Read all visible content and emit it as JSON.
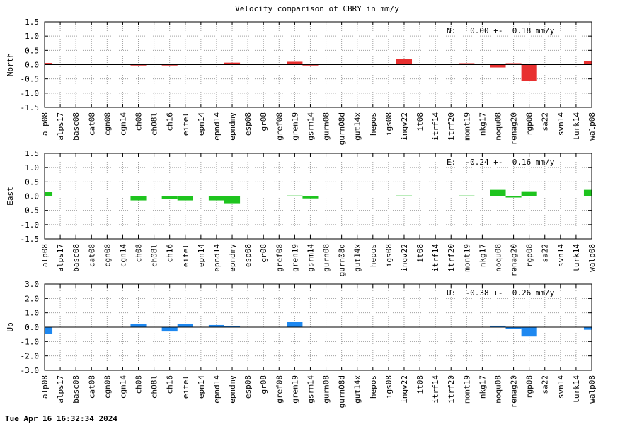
{
  "title": "Velocity comparison of CBRY in mm/y",
  "footer_timestamp": "Tue Apr 16 16:32:34 2024",
  "chart_data": [
    {
      "type": "bar",
      "ylabel": "North",
      "ylim": [
        -1.5,
        1.5
      ],
      "yticks": [
        1.5,
        1.0,
        0.5,
        0.0,
        -0.5,
        -1.0,
        -1.5
      ],
      "ytick_labels": [
        "1.5",
        "1.0",
        "0.5",
        "0.0",
        "-0.5",
        "-1.0",
        "-1.5"
      ],
      "annotation": "N:   0.00 +-  0.18 mm/y",
      "color": "#e83030",
      "grid": true,
      "categories": [
        "alp08",
        "alps17",
        "basc08",
        "cat08",
        "cgn08",
        "cgn14",
        "ch08",
        "ch08l",
        "ch16",
        "eifel",
        "epn14",
        "epnd14",
        "epndmy",
        "esp08",
        "gr08",
        "gref08",
        "gren19",
        "gsrm14",
        "gurn08",
        "gurn08d",
        "gut14x",
        "hepos",
        "igs08",
        "ingv22",
        "it08",
        "itrf14",
        "itrf20",
        "mont19",
        "nkg17",
        "noqu08",
        "renag20",
        "rgp08",
        "sa22",
        "svn14",
        "turk14",
        "walp08"
      ],
      "values": [
        0.06,
        0,
        0,
        0,
        0,
        0,
        -0.03,
        0,
        -0.03,
        0.02,
        0,
        0.03,
        0.07,
        0,
        0,
        0,
        0.1,
        -0.03,
        0,
        0,
        0,
        0,
        0,
        0.2,
        0,
        0,
        0,
        0.05,
        0,
        -0.1,
        0.05,
        -0.57,
        0,
        0,
        0,
        0.13
      ]
    },
    {
      "type": "bar",
      "ylabel": "East",
      "ylim": [
        -1.5,
        1.5
      ],
      "yticks": [
        1.5,
        1.0,
        0.5,
        0.0,
        -0.5,
        -1.0,
        -1.5
      ],
      "ytick_labels": [
        "1.5",
        "1.0",
        "0.5",
        "0.0",
        "-0.5",
        "-1.0",
        "-1.5"
      ],
      "annotation": "E:  -0.24 +-  0.16 mm/y",
      "color": "#1ec41e",
      "grid": true,
      "categories": [
        "alp08",
        "alps17",
        "basc08",
        "cat08",
        "cgn08",
        "cgn14",
        "ch08",
        "ch08l",
        "ch16",
        "eifel",
        "epn14",
        "epnd14",
        "epndmy",
        "esp08",
        "gr08",
        "gref08",
        "gren19",
        "gsrm14",
        "gurn08",
        "gurn08d",
        "gut14x",
        "hepos",
        "igs08",
        "ingv22",
        "it08",
        "itrf14",
        "itrf20",
        "mont19",
        "nkg17",
        "noqu08",
        "renag20",
        "rgp08",
        "sa22",
        "svn14",
        "turk14",
        "walp08"
      ],
      "values": [
        0.15,
        0,
        0,
        0,
        0,
        0,
        -0.15,
        0,
        -0.1,
        -0.15,
        0,
        -0.15,
        -0.25,
        0,
        0,
        0,
        0.02,
        -0.08,
        0,
        0,
        0,
        0,
        0,
        0.02,
        0,
        0,
        0,
        0.02,
        0,
        0.22,
        -0.05,
        0.17,
        0,
        0,
        0,
        0.22
      ]
    },
    {
      "type": "bar",
      "ylabel": "Up",
      "ylim": [
        -3.0,
        3.0
      ],
      "yticks": [
        3.0,
        2.0,
        1.0,
        0.0,
        -1.0,
        -2.0,
        -3.0
      ],
      "ytick_labels": [
        "3.0",
        "2.0",
        "1.0",
        "0.0",
        "-1.0",
        "-2.0",
        "-3.0"
      ],
      "annotation": "U:  -0.38 +-  0.26 mm/y",
      "color": "#1e88f0",
      "grid": true,
      "categories": [
        "alp08",
        "alps17",
        "basc08",
        "cat08",
        "cgn08",
        "cgn14",
        "ch08",
        "ch08l",
        "ch16",
        "eifel",
        "epn14",
        "epnd14",
        "epndmy",
        "esp08",
        "gr08",
        "gref08",
        "gren19",
        "gsrm14",
        "gurn08",
        "gurn08d",
        "gut14x",
        "hepos",
        "igs08",
        "ingv22",
        "it08",
        "itrf14",
        "itrf20",
        "mont19",
        "nkg17",
        "noqu08",
        "renag20",
        "rgp08",
        "sa22",
        "svn14",
        "turk14",
        "walp08"
      ],
      "values": [
        -0.45,
        0,
        0,
        0,
        0,
        0,
        0.2,
        0,
        -0.3,
        0.2,
        0,
        0.15,
        0.05,
        0,
        0,
        0,
        0.35,
        0,
        0,
        0,
        0,
        0,
        0,
        0,
        0,
        0,
        0,
        0,
        0,
        0.1,
        -0.1,
        -0.65,
        0,
        0,
        0,
        -0.18
      ]
    }
  ]
}
